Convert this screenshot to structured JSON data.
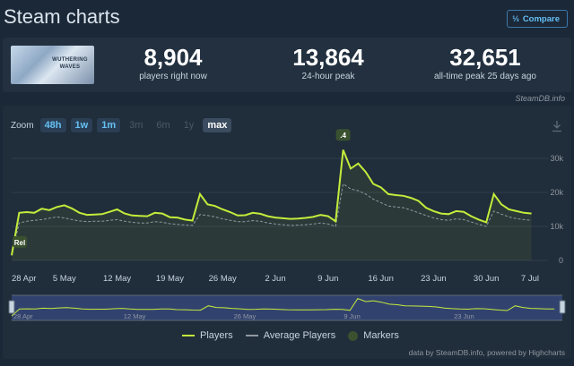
{
  "page": {
    "title": "Steam charts",
    "compare_label": "Compare",
    "credit": "SteamDB.info",
    "footer": "data by SteamDB.info, powered by Highcharts"
  },
  "stats": [
    {
      "value": "8,904",
      "label": "players right now"
    },
    {
      "value": "13,864",
      "label": "24-hour peak"
    },
    {
      "value": "32,651",
      "label": "all-time peak 25 days ago"
    }
  ],
  "game_banner_text": "WUTHERING WAVES",
  "zoom": {
    "label": "Zoom",
    "options": [
      {
        "label": "48h",
        "state": "enabled"
      },
      {
        "label": "1w",
        "state": "enabled"
      },
      {
        "label": "1m",
        "state": "enabled"
      },
      {
        "label": "3m",
        "state": "disabled"
      },
      {
        "label": "6m",
        "state": "disabled"
      },
      {
        "label": "1y",
        "state": "disabled"
      },
      {
        "label": "max",
        "state": "active"
      }
    ]
  },
  "colors": {
    "players": "#c4ec3b",
    "average": "#8f98a0",
    "markers": "#3a5130",
    "grid": "#2e3d4d",
    "navigator_fill": "#3c4f8c"
  },
  "chart_data": {
    "type": "line",
    "x_tick_labels": [
      "28 Apr",
      "5 May",
      "12 May",
      "19 May",
      "26 May",
      "2 Jun",
      "9 Jun",
      "16 Jun",
      "23 Jun",
      "30 Jun",
      "7 Jul"
    ],
    "x_range": [
      "2024-04-28",
      "2024-07-07"
    ],
    "ylim": [
      0,
      35000
    ],
    "y_tick_labels": [
      "0",
      "10k",
      "20k",
      "30k"
    ],
    "grid": true,
    "legend": {
      "position": "bottom",
      "entries": [
        "Players",
        "Average Players",
        "Markers"
      ]
    },
    "markers": [
      {
        "date": "2024-04-28",
        "label": "Rel",
        "value": 4500
      },
      {
        "date": "2024-06-11",
        "label": ".4",
        "value": 36000
      }
    ],
    "series": [
      {
        "name": "Players",
        "points": [
          [
            "2024-04-28",
            1500
          ],
          [
            "2024-04-29",
            14000
          ],
          [
            "2024-04-30",
            14200
          ],
          [
            "2024-05-01",
            14000
          ],
          [
            "2024-05-02",
            15200
          ],
          [
            "2024-05-03",
            14800
          ],
          [
            "2024-05-04",
            15700
          ],
          [
            "2024-05-05",
            16200
          ],
          [
            "2024-05-06",
            15300
          ],
          [
            "2024-05-07",
            14000
          ],
          [
            "2024-05-08",
            13400
          ],
          [
            "2024-05-09",
            13500
          ],
          [
            "2024-05-10",
            13600
          ],
          [
            "2024-05-11",
            14300
          ],
          [
            "2024-05-12",
            15000
          ],
          [
            "2024-05-13",
            13800
          ],
          [
            "2024-05-14",
            13200
          ],
          [
            "2024-05-15",
            13100
          ],
          [
            "2024-05-16",
            13000
          ],
          [
            "2024-05-17",
            14000
          ],
          [
            "2024-05-18",
            13800
          ],
          [
            "2024-05-19",
            12700
          ],
          [
            "2024-05-20",
            12600
          ],
          [
            "2024-05-21",
            12000
          ],
          [
            "2024-05-22",
            11700
          ],
          [
            "2024-05-23",
            19500
          ],
          [
            "2024-05-24",
            16500
          ],
          [
            "2024-05-25",
            16000
          ],
          [
            "2024-05-26",
            15000
          ],
          [
            "2024-05-27",
            14200
          ],
          [
            "2024-05-28",
            13200
          ],
          [
            "2024-05-29",
            13300
          ],
          [
            "2024-05-30",
            14000
          ],
          [
            "2024-05-31",
            13700
          ],
          [
            "2024-06-01",
            13000
          ],
          [
            "2024-06-02",
            12600
          ],
          [
            "2024-06-03",
            12400
          ],
          [
            "2024-06-04",
            12200
          ],
          [
            "2024-06-05",
            12300
          ],
          [
            "2024-06-06",
            12500
          ],
          [
            "2024-06-07",
            12800
          ],
          [
            "2024-06-08",
            13400
          ],
          [
            "2024-06-09",
            13000
          ],
          [
            "2024-06-10",
            11500
          ],
          [
            "2024-06-11",
            32500
          ],
          [
            "2024-06-12",
            27000
          ],
          [
            "2024-06-13",
            28500
          ],
          [
            "2024-06-14",
            26000
          ],
          [
            "2024-06-15",
            22500
          ],
          [
            "2024-06-16",
            21500
          ],
          [
            "2024-06-17",
            19500
          ],
          [
            "2024-06-18",
            19200
          ],
          [
            "2024-06-19",
            19000
          ],
          [
            "2024-06-20",
            18400
          ],
          [
            "2024-06-21",
            17500
          ],
          [
            "2024-06-22",
            15500
          ],
          [
            "2024-06-23",
            14500
          ],
          [
            "2024-06-24",
            13800
          ],
          [
            "2024-06-25",
            13600
          ],
          [
            "2024-06-26",
            14500
          ],
          [
            "2024-06-27",
            14300
          ],
          [
            "2024-06-28",
            13000
          ],
          [
            "2024-06-29",
            12000
          ],
          [
            "2024-06-30",
            11200
          ],
          [
            "2024-07-01",
            19500
          ],
          [
            "2024-07-02",
            16500
          ],
          [
            "2024-07-03",
            15000
          ],
          [
            "2024-07-04",
            14500
          ],
          [
            "2024-07-05",
            14000
          ],
          [
            "2024-07-06",
            13800
          ]
        ]
      },
      {
        "name": "Average Players",
        "points": [
          [
            "2024-04-28",
            1500
          ],
          [
            "2024-04-29",
            11000
          ],
          [
            "2024-04-30",
            11500
          ],
          [
            "2024-05-01",
            11800
          ],
          [
            "2024-05-02",
            12000
          ],
          [
            "2024-05-03",
            12400
          ],
          [
            "2024-05-04",
            12800
          ],
          [
            "2024-05-05",
            12500
          ],
          [
            "2024-05-06",
            12000
          ],
          [
            "2024-05-07",
            11600
          ],
          [
            "2024-05-08",
            11400
          ],
          [
            "2024-05-09",
            11500
          ],
          [
            "2024-05-10",
            11500
          ],
          [
            "2024-05-11",
            11800
          ],
          [
            "2024-05-12",
            12000
          ],
          [
            "2024-05-13",
            11500
          ],
          [
            "2024-05-14",
            11200
          ],
          [
            "2024-05-15",
            11000
          ],
          [
            "2024-05-16",
            11000
          ],
          [
            "2024-05-17",
            11400
          ],
          [
            "2024-05-18",
            11200
          ],
          [
            "2024-05-19",
            10800
          ],
          [
            "2024-05-20",
            10600
          ],
          [
            "2024-05-21",
            10400
          ],
          [
            "2024-05-22",
            10300
          ],
          [
            "2024-05-23",
            13500
          ],
          [
            "2024-05-24",
            13200
          ],
          [
            "2024-05-25",
            12800
          ],
          [
            "2024-05-26",
            12200
          ],
          [
            "2024-05-27",
            11800
          ],
          [
            "2024-05-28",
            11400
          ],
          [
            "2024-05-29",
            11400
          ],
          [
            "2024-05-30",
            11700
          ],
          [
            "2024-05-31",
            11500
          ],
          [
            "2024-06-01",
            11000
          ],
          [
            "2024-06-02",
            10700
          ],
          [
            "2024-06-03",
            10500
          ],
          [
            "2024-06-04",
            10300
          ],
          [
            "2024-06-05",
            10400
          ],
          [
            "2024-06-06",
            10500
          ],
          [
            "2024-06-07",
            10700
          ],
          [
            "2024-06-08",
            11000
          ],
          [
            "2024-06-09",
            10700
          ],
          [
            "2024-06-10",
            10000
          ],
          [
            "2024-06-11",
            22500
          ],
          [
            "2024-06-12",
            21000
          ],
          [
            "2024-06-13",
            20500
          ],
          [
            "2024-06-14",
            19500
          ],
          [
            "2024-06-15",
            18000
          ],
          [
            "2024-06-16",
            17000
          ],
          [
            "2024-06-17",
            16000
          ],
          [
            "2024-06-18",
            15700
          ],
          [
            "2024-06-19",
            15500
          ],
          [
            "2024-06-20",
            14800
          ],
          [
            "2024-06-21",
            14000
          ],
          [
            "2024-06-22",
            13200
          ],
          [
            "2024-06-23",
            12500
          ],
          [
            "2024-06-24",
            12000
          ],
          [
            "2024-06-25",
            11800
          ],
          [
            "2024-06-26",
            12200
          ],
          [
            "2024-06-27",
            12000
          ],
          [
            "2024-06-28",
            11300
          ],
          [
            "2024-06-29",
            10600
          ],
          [
            "2024-06-30",
            10000
          ],
          [
            "2024-07-01",
            14500
          ],
          [
            "2024-07-02",
            13600
          ],
          [
            "2024-07-03",
            12800
          ],
          [
            "2024-07-04",
            12300
          ],
          [
            "2024-07-05",
            12000
          ],
          [
            "2024-07-06",
            11800
          ]
        ]
      }
    ]
  }
}
